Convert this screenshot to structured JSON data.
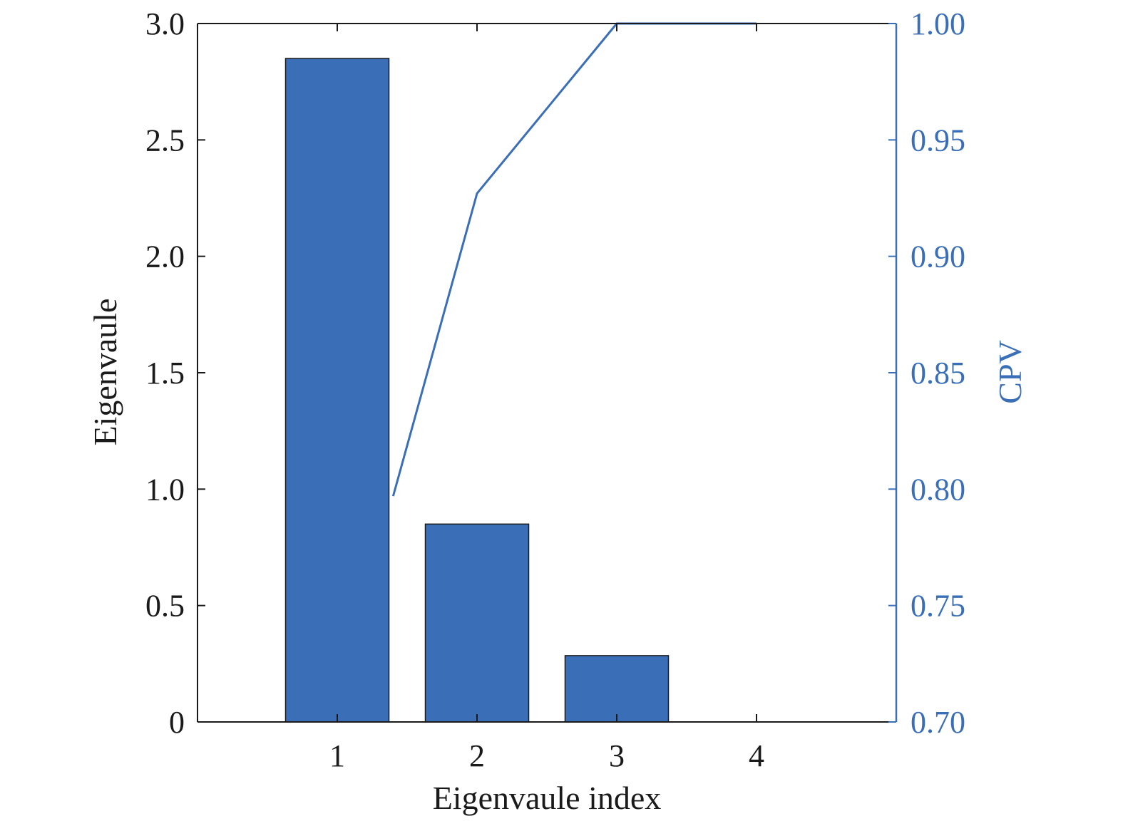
{
  "chart_data": {
    "type": "bar",
    "categories": [
      "1",
      "2",
      "3",
      "4"
    ],
    "xlabel": "Eigenvaule index",
    "ylabel": "Eigenvaule",
    "ylabel_right": "CPV",
    "x_range": [
      0,
      5
    ],
    "ylim": [
      0,
      3.0
    ],
    "ylim_right": [
      0.7,
      1.0
    ],
    "yticks": [
      "0",
      "0.5",
      "1.0",
      "1.5",
      "2.0",
      "2.5",
      "3.0"
    ],
    "yticks_right": [
      "0.70",
      "0.75",
      "0.80",
      "0.85",
      "0.90",
      "0.95",
      "1.00"
    ],
    "series": [
      {
        "type": "bar",
        "axis": "left",
        "x": [
          1,
          2,
          3,
          4
        ],
        "values": [
          2.85,
          0.85,
          0.285,
          0.0
        ]
      },
      {
        "type": "line",
        "axis": "right",
        "x": [
          1.4,
          2,
          3,
          4
        ],
        "values": [
          0.797,
          0.927,
          1.0,
          1.0
        ]
      }
    ],
    "grid": false,
    "colors": {
      "bar_fill": "#3a6fb8",
      "bar_stroke": "#1a1a1a",
      "line": "#3a6fb8",
      "right_axis": "#3a6fb8",
      "left_axis": "#1a1a1a"
    }
  }
}
